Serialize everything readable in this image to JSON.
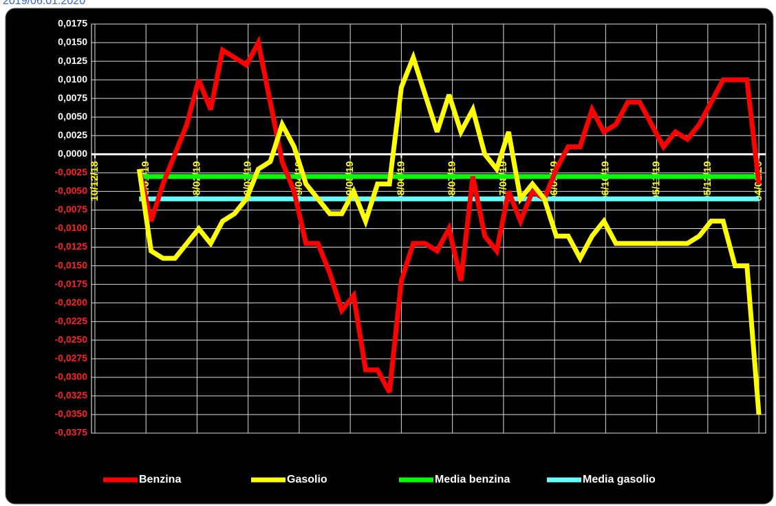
{
  "chart_data": {
    "type": "line",
    "title": "2019/06.01.2020",
    "x": [
      "2019-01-05",
      "2019-01-12",
      "2019-01-19",
      "2019-01-26",
      "2019-02-02",
      "2019-02-09",
      "2019-02-16",
      "2019-02-23",
      "2019-03-02",
      "2019-03-09",
      "2019-03-16",
      "2019-03-23",
      "2019-03-30",
      "2019-04-06",
      "2019-04-13",
      "2019-04-20",
      "2019-04-27",
      "2019-05-04",
      "2019-05-11",
      "2019-05-18",
      "2019-05-25",
      "2019-06-01",
      "2019-06-08",
      "2019-06-15",
      "2019-06-22",
      "2019-06-29",
      "2019-07-06",
      "2019-07-13",
      "2019-07-20",
      "2019-07-27",
      "2019-08-03",
      "2019-08-10",
      "2019-08-17",
      "2019-08-24",
      "2019-08-31",
      "2019-09-07",
      "2019-09-14",
      "2019-09-21",
      "2019-09-28",
      "2019-10-05",
      "2019-10-12",
      "2019-10-19",
      "2019-10-26",
      "2019-11-02",
      "2019-11-09",
      "2019-11-16",
      "2019-11-23",
      "2019-11-30",
      "2019-12-07",
      "2019-12-14",
      "2019-12-21",
      "2019-12-28",
      "2020-01-04"
    ],
    "series": [
      {
        "name": "Benzina",
        "color": "#ff0000",
        "values": [
          -0.002,
          -0.009,
          -0.004,
          0.0,
          0.004,
          0.01,
          0.006,
          0.014,
          0.013,
          0.012,
          0.015,
          0.007,
          -0.001,
          -0.005,
          -0.012,
          -0.012,
          -0.016,
          -0.021,
          -0.019,
          -0.029,
          -0.029,
          -0.032,
          -0.017,
          -0.012,
          -0.012,
          -0.013,
          -0.01,
          -0.017,
          -0.003,
          -0.011,
          -0.013,
          -0.005,
          -0.009,
          -0.005,
          -0.006,
          -0.002,
          0.001,
          0.001,
          0.006,
          0.003,
          0.004,
          0.007,
          0.007,
          0.004,
          0.001,
          0.003,
          0.002,
          0.004,
          0.007,
          0.01,
          0.01,
          0.01,
          -0.004
        ]
      },
      {
        "name": "Gasolio",
        "color": "#ffff00",
        "values": [
          -0.002,
          -0.013,
          -0.014,
          -0.014,
          -0.012,
          -0.01,
          -0.012,
          -0.009,
          -0.008,
          -0.006,
          -0.002,
          -0.001,
          0.004,
          0.001,
          -0.004,
          -0.006,
          -0.008,
          -0.008,
          -0.005,
          -0.009,
          -0.004,
          -0.004,
          0.009,
          0.013,
          0.008,
          0.003,
          0.008,
          0.003,
          0.006,
          0.0,
          -0.002,
          0.003,
          -0.006,
          -0.004,
          -0.006,
          -0.011,
          -0.011,
          -0.014,
          -0.011,
          -0.009,
          -0.012,
          -0.012,
          -0.012,
          -0.012,
          -0.012,
          -0.012,
          -0.012,
          -0.011,
          -0.009,
          -0.009,
          -0.015,
          -0.015,
          -0.035
        ]
      }
    ],
    "reference_lines": [
      {
        "name": "Media benzina",
        "color": "#00ff00",
        "value": -0.003
      },
      {
        "name": "Media gasolio",
        "color": "#66ffff",
        "value": -0.006
      }
    ],
    "xlim": [
      "2018-12-08",
      "2020-01-08"
    ],
    "xticks": [
      {
        "value": "2018-12-10",
        "label": "10/12/18"
      },
      {
        "value": "2019-01-09",
        "label": "09/01/19"
      },
      {
        "value": "2019-02-08",
        "label": "08/02/19"
      },
      {
        "value": "2019-03-10",
        "label": "10/03/19"
      },
      {
        "value": "2019-04-09",
        "label": "09/04/19"
      },
      {
        "value": "2019-05-09",
        "label": "09/05/19"
      },
      {
        "value": "2019-06-08",
        "label": "08/06/19"
      },
      {
        "value": "2019-07-08",
        "label": "08/07/19"
      },
      {
        "value": "2019-08-07",
        "label": "07/08/19"
      },
      {
        "value": "2019-09-06",
        "label": "06/09/19"
      },
      {
        "value": "2019-10-06",
        "label": "06/10/19"
      },
      {
        "value": "2019-11-05",
        "label": "05/11/19"
      },
      {
        "value": "2019-12-05",
        "label": "05/12/19"
      },
      {
        "value": "2020-01-04",
        "label": "04/01/20"
      }
    ],
    "ylim": [
      -0.0375,
      0.0175
    ],
    "yticks": [
      {
        "value": 0.0175,
        "label": "0,0175"
      },
      {
        "value": 0.015,
        "label": "0,0150"
      },
      {
        "value": 0.0125,
        "label": "0,0125"
      },
      {
        "value": 0.01,
        "label": "0,0100"
      },
      {
        "value": 0.0075,
        "label": "0,0075"
      },
      {
        "value": 0.005,
        "label": "0,0050"
      },
      {
        "value": 0.0025,
        "label": "0,0025"
      },
      {
        "value": 0,
        "label": "0,0000"
      },
      {
        "value": -0.0025,
        "label": "-0,0025"
      },
      {
        "value": -0.005,
        "label": "-0,0050"
      },
      {
        "value": -0.0075,
        "label": "-0,0075"
      },
      {
        "value": -0.01,
        "label": "-0,0100"
      },
      {
        "value": -0.0125,
        "label": "-0,0125"
      },
      {
        "value": -0.015,
        "label": "-0,0150"
      },
      {
        "value": -0.0175,
        "label": "-0,0175"
      },
      {
        "value": -0.02,
        "label": "-0,0200"
      },
      {
        "value": -0.0225,
        "label": "-0,0225"
      },
      {
        "value": -0.025,
        "label": "-0,0250"
      },
      {
        "value": -0.0275,
        "label": "-0,0275"
      },
      {
        "value": -0.03,
        "label": "-0,0300"
      },
      {
        "value": -0.0325,
        "label": "-0,0325"
      },
      {
        "value": -0.035,
        "label": "-0,0350"
      },
      {
        "value": -0.0375,
        "label": "-0,0375"
      }
    ],
    "grid": true,
    "legend": "bottom"
  }
}
